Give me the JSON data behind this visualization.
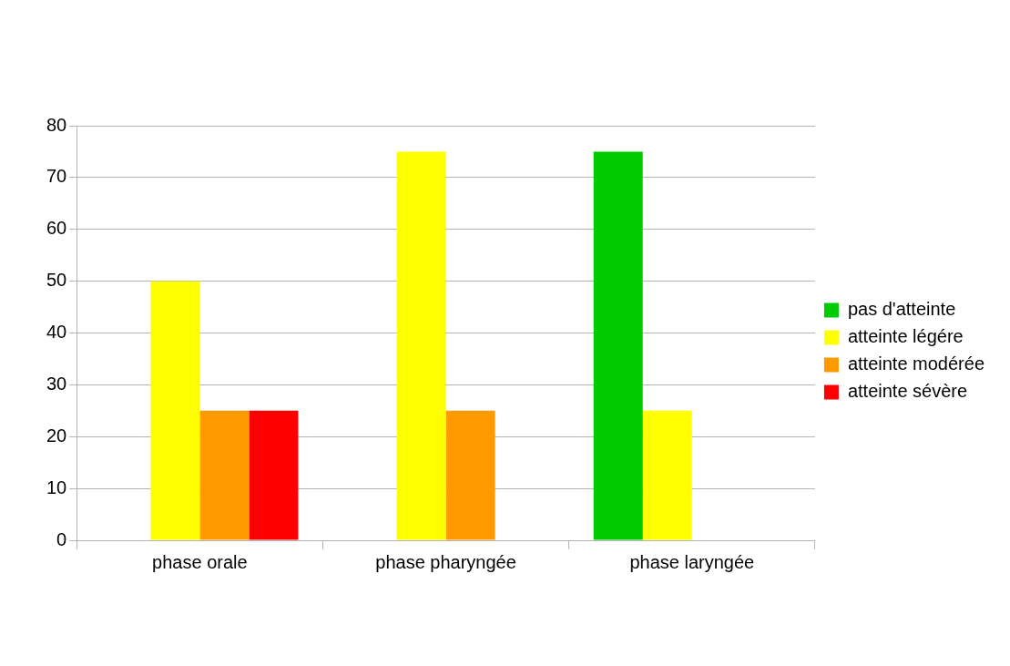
{
  "chart_data": {
    "type": "bar",
    "categories": [
      "phase orale",
      "phase pharyngée",
      "phase laryngée"
    ],
    "series": [
      {
        "name": "pas d'atteinte",
        "color": "#00cc00",
        "values": [
          0,
          0,
          75
        ]
      },
      {
        "name": "atteinte légére",
        "color": "#ffff00",
        "values": [
          50,
          75,
          25
        ]
      },
      {
        "name": "atteinte modérée",
        "color": "#ff9900",
        "values": [
          25,
          25,
          0
        ]
      },
      {
        "name": "atteinte sévère",
        "color": "#ff0000",
        "values": [
          25,
          0,
          0
        ]
      }
    ],
    "ylim": [
      0,
      80
    ],
    "yticks": [
      0,
      10,
      20,
      30,
      40,
      50,
      60,
      70,
      80
    ],
    "grid": "y",
    "legend": "right"
  }
}
